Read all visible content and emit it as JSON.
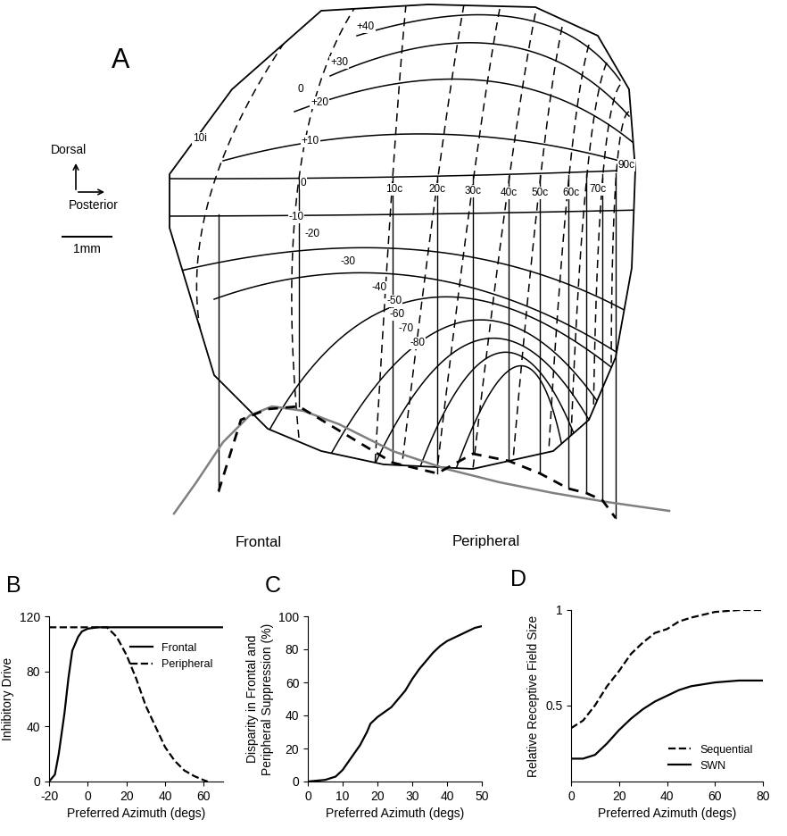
{
  "diagram": {
    "label": "A",
    "orientation": {
      "up": "Dorsal",
      "right": "Posterior"
    },
    "scale_bar": "1mm",
    "elevation_labels": [
      "+40",
      "+30",
      "+20",
      "+10",
      "0",
      "-10",
      "-20",
      "-30",
      "-40",
      "-50",
      "-60",
      "-70",
      "-80"
    ],
    "azimuth_labels": [
      "10i",
      "0",
      "10c",
      "20c",
      "30c",
      "40c",
      "50c",
      "60c",
      "70c",
      "90c"
    ],
    "profile_labels": [
      "Frontal",
      "Peripheral"
    ]
  },
  "chart_data": [
    {
      "type": "line",
      "title": "B",
      "x_label": "Preferred Azimuth (degs)",
      "y_label": "Inhibitory Drive",
      "xlim": [
        -20,
        70
      ],
      "ylim": [
        0,
        120
      ],
      "xticks": [
        -20,
        0,
        20,
        40,
        60
      ],
      "yticks": [
        0,
        40,
        80,
        120
      ],
      "legend": "upper right",
      "series": [
        {
          "name": "Frontal",
          "color": "#000000",
          "line_style": "solid",
          "x": [
            -20,
            -17,
            -15,
            -12,
            -10,
            -8,
            -5,
            -3,
            0,
            5,
            10,
            70
          ],
          "values": [
            0,
            5,
            20,
            50,
            75,
            95,
            105,
            109,
            111,
            112,
            112,
            112
          ]
        },
        {
          "name": "Peripheral",
          "color": "#000000",
          "line_style": "dashed",
          "x": [
            -20,
            10,
            15,
            20,
            25,
            30,
            35,
            40,
            45,
            50,
            55,
            60,
            62
          ],
          "values": [
            112,
            112,
            105,
            92,
            75,
            55,
            40,
            25,
            15,
            8,
            4,
            1,
            0
          ]
        }
      ]
    },
    {
      "type": "line",
      "title": "C",
      "x_label": "Preferred Azimuth (degs)",
      "y_label": "Disparity in Frontal and\nPeripheral Suppression (%)",
      "xlim": [
        0,
        50
      ],
      "ylim": [
        0,
        100
      ],
      "xticks": [
        0,
        10,
        20,
        30,
        40,
        50
      ],
      "yticks": [
        0,
        20,
        40,
        60,
        80,
        100
      ],
      "series": [
        {
          "color": "#000000",
          "line_style": "solid",
          "x": [
            0,
            5,
            8,
            10,
            12,
            15,
            17,
            18,
            20,
            22,
            24,
            26,
            28,
            30,
            32,
            34,
            36,
            38,
            40,
            42,
            44,
            46,
            48,
            50
          ],
          "values": [
            0,
            1,
            3,
            7,
            13,
            22,
            30,
            35,
            39,
            42,
            45,
            50,
            55,
            62,
            68,
            73,
            78,
            82,
            85,
            87,
            89,
            91,
            93,
            94
          ]
        }
      ]
    },
    {
      "type": "line",
      "title": "D",
      "x_label": "Preferred Azimuth (degs)",
      "y_label": "Relative Receptive Field Size",
      "xlim": [
        0,
        80
      ],
      "ylim": [
        0.1,
        1.0
      ],
      "xticks": [
        0,
        20,
        40,
        60,
        80
      ],
      "yticks": [
        0.5,
        1
      ],
      "legend": "lower right",
      "series": [
        {
          "name": "Sequential",
          "color": "#000000",
          "line_style": "dashed",
          "x": [
            0,
            5,
            10,
            15,
            20,
            25,
            30,
            35,
            40,
            45,
            50,
            60,
            70,
            80
          ],
          "values": [
            0.38,
            0.42,
            0.5,
            0.6,
            0.68,
            0.77,
            0.83,
            0.88,
            0.9,
            0.94,
            0.96,
            0.99,
            1.0,
            1.0
          ]
        },
        {
          "name": "SWN",
          "color": "#000000",
          "line_style": "solid",
          "x": [
            0,
            5,
            10,
            15,
            20,
            25,
            30,
            35,
            40,
            45,
            50,
            60,
            70,
            80
          ],
          "values": [
            0.22,
            0.22,
            0.24,
            0.3,
            0.37,
            0.43,
            0.48,
            0.52,
            0.55,
            0.58,
            0.6,
            0.62,
            0.63,
            0.63
          ]
        }
      ]
    }
  ]
}
